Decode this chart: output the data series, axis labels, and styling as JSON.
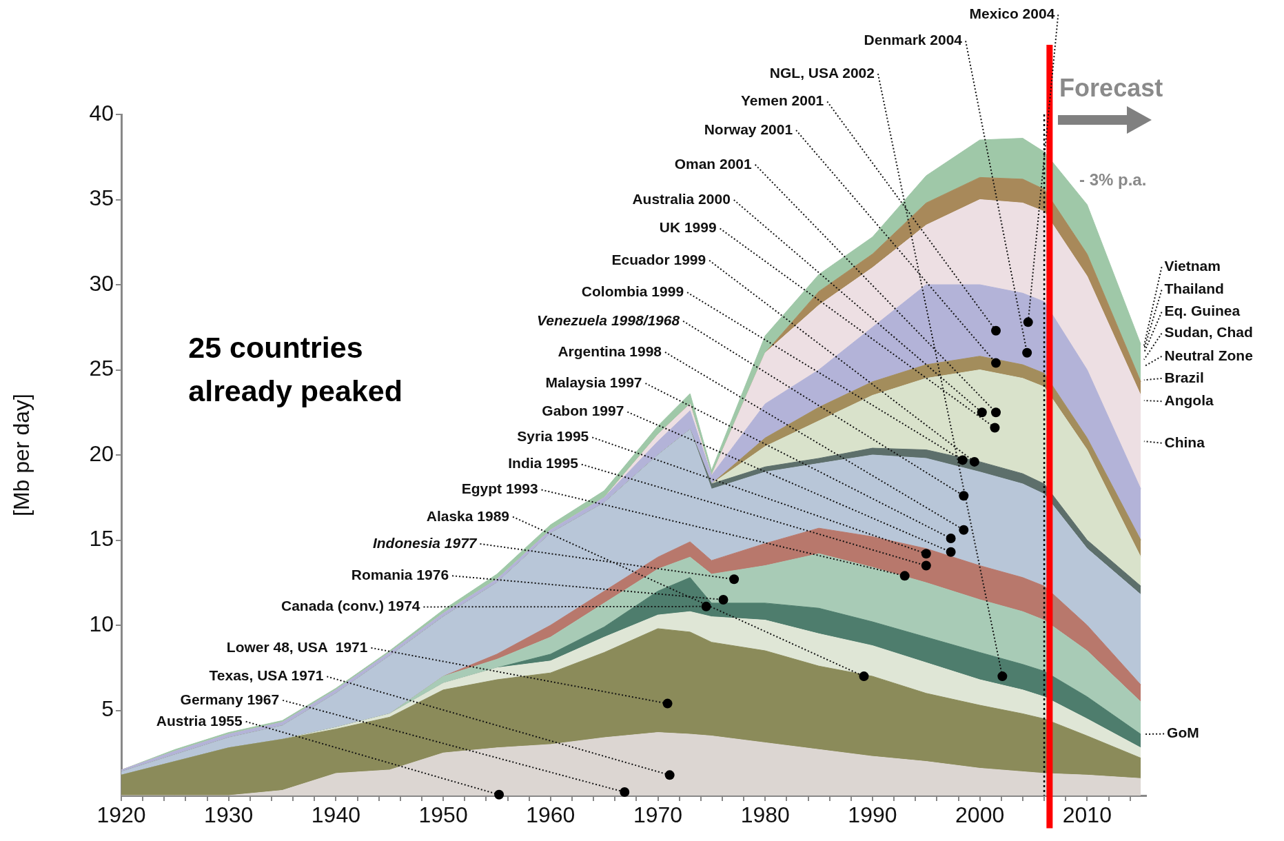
{
  "chart_data": {
    "type": "area",
    "stacked": true,
    "ylabel": "[Mb per day]",
    "x": [
      1920,
      1925,
      1930,
      1935,
      1940,
      1945,
      1950,
      1955,
      1960,
      1965,
      1970,
      1973,
      1975,
      1980,
      1985,
      1990,
      1995,
      2000,
      2004,
      2006,
      2010,
      2015
    ],
    "xlim": [
      1920,
      2015.5
    ],
    "ylim": [
      0,
      40
    ],
    "xticks": [
      1920,
      {
        "value": 1922,
        "label": null
      },
      {
        "value": 1924,
        "label": null
      },
      {
        "value": 1926,
        "label": null
      },
      {
        "value": 1928,
        "label": null
      },
      1930,
      {
        "value": 1932,
        "label": null
      },
      {
        "value": 1934,
        "label": null
      },
      {
        "value": 1936,
        "label": null
      },
      {
        "value": 1938,
        "label": null
      },
      1940,
      {
        "value": 1942,
        "label": null
      },
      {
        "value": 1944,
        "label": null
      },
      {
        "value": 1946,
        "label": null
      },
      {
        "value": 1948,
        "label": null
      },
      1950,
      {
        "value": 1952,
        "label": null
      },
      {
        "value": 1954,
        "label": null
      },
      {
        "value": 1956,
        "label": null
      },
      {
        "value": 1958,
        "label": null
      },
      1960,
      {
        "value": 1962,
        "label": null
      },
      {
        "value": 1964,
        "label": null
      },
      {
        "value": 1966,
        "label": null
      },
      {
        "value": 1968,
        "label": null
      },
      1970,
      {
        "value": 1972,
        "label": null
      },
      {
        "value": 1974,
        "label": null
      },
      {
        "value": 1976,
        "label": null
      },
      {
        "value": 1978,
        "label": null
      },
      1980,
      {
        "value": 1982,
        "label": null
      },
      {
        "value": 1984,
        "label": null
      },
      {
        "value": 1986,
        "label": null
      },
      {
        "value": 1988,
        "label": null
      },
      1990,
      {
        "value": 1992,
        "label": null
      },
      {
        "value": 1994,
        "label": null
      },
      {
        "value": 1996,
        "label": null
      },
      {
        "value": 1998,
        "label": null
      },
      2000,
      {
        "value": 2002,
        "label": null
      },
      {
        "value": 2004,
        "label": null
      },
      {
        "value": 2006,
        "label": null
      },
      {
        "value": 2008,
        "label": null
      },
      2010,
      {
        "value": 2012,
        "label": null
      },
      {
        "value": 2014,
        "label": null
      }
    ],
    "yticks": [
      5,
      10,
      15,
      20,
      25,
      30,
      35,
      40
    ],
    "series": [
      {
        "color": "#dcd6d2",
        "values": [
          0,
          0,
          0,
          0.3,
          1.3,
          1.5,
          2.5,
          2.8,
          3.0,
          3.4,
          3.7,
          3.6,
          3.5,
          3.1,
          2.7,
          2.3,
          2.0,
          1.6,
          1.4,
          1.3,
          1.2,
          1.0
        ]
      },
      {
        "color": "#8b8b5a",
        "values": [
          1.2,
          2.0,
          2.8,
          3.0,
          2.6,
          3.1,
          3.7,
          4.0,
          4.2,
          5.0,
          6.1,
          6.0,
          5.5,
          5.4,
          4.9,
          4.7,
          4.0,
          3.7,
          3.4,
          3.2,
          2.3,
          1.2
        ]
      },
      {
        "color": "#dfe6d6",
        "values": [
          0,
          0,
          0,
          0,
          0.1,
          0.2,
          0.4,
          0.7,
          0.7,
          0.9,
          0.8,
          1.2,
          1.5,
          1.8,
          1.9,
          1.8,
          1.8,
          1.5,
          1.4,
          1.3,
          1.0,
          0.6
        ]
      },
      {
        "color": "#4e7d6d",
        "values": [
          0,
          0,
          0,
          0,
          0,
          0,
          0,
          0,
          0.4,
          0.6,
          1.4,
          2.0,
          0.8,
          1.0,
          1.5,
          1.4,
          1.5,
          1.6,
          1.5,
          1.5,
          1.3,
          0.8
        ]
      },
      {
        "color": "#a8cbb6",
        "values": [
          0,
          0,
          0,
          0,
          0,
          0,
          0.4,
          0.5,
          1.0,
          1.4,
          1.3,
          1.2,
          1.7,
          2.2,
          3.2,
          3.2,
          3.2,
          3.1,
          3.1,
          3.0,
          2.7,
          1.9
        ]
      },
      {
        "color": "#b8786c",
        "values": [
          0,
          0,
          0,
          0,
          0,
          0,
          0,
          0.3,
          0.7,
          0.7,
          0.7,
          0.9,
          0.8,
          1.3,
          1.5,
          1.8,
          2.0,
          2.0,
          2.0,
          2.0,
          1.5,
          1.0
        ]
      },
      {
        "color": "#b8c6d8",
        "values": [
          0.2,
          0.4,
          0.6,
          0.8,
          2.0,
          3.4,
          3.5,
          4.2,
          5.4,
          5.2,
          6.0,
          6.6,
          4.2,
          4.2,
          3.8,
          4.8,
          5.3,
          5.5,
          5.5,
          5.4,
          4.5,
          5.3
        ]
      },
      {
        "color": "#5d6f6b",
        "values": [
          0,
          0,
          0,
          0,
          0,
          0,
          0,
          0,
          0,
          0,
          0,
          0,
          0.3,
          0.3,
          0.3,
          0.4,
          0.5,
          0.6,
          0.6,
          0.6,
          0.5,
          0.5
        ]
      },
      {
        "color": "#d9e2cb",
        "values": [
          0,
          0,
          0,
          0,
          0,
          0,
          0,
          0,
          0,
          0,
          0,
          0,
          0,
          1.2,
          2.2,
          3.1,
          4.2,
          5.4,
          5.6,
          5.7,
          5.3,
          1.7
        ]
      },
      {
        "color": "#a38d5c",
        "values": [
          0,
          0,
          0,
          0,
          0,
          0,
          0,
          0,
          0,
          0,
          0,
          0,
          0,
          0.5,
          0.8,
          0.8,
          0.8,
          0.8,
          0.8,
          0.8,
          0.7,
          1.0
        ]
      },
      {
        "color": "#b3b3d8",
        "values": [
          0.1,
          0.2,
          0.2,
          0.2,
          0.2,
          0.2,
          0.2,
          0.2,
          0.2,
          0.3,
          0.8,
          1.1,
          0.5,
          2.0,
          2.2,
          3.2,
          4.7,
          4.2,
          4.2,
          4.2,
          4.0,
          3.0
        ]
      },
      {
        "color": "#eddfe3",
        "values": [
          0,
          0,
          0,
          0,
          0,
          0,
          0,
          0,
          0,
          0,
          0.4,
          0.4,
          0,
          3.0,
          3.8,
          3.5,
          3.5,
          5.0,
          5.3,
          5.3,
          5.5,
          5.5
        ]
      },
      {
        "color": "#a8895a",
        "values": [
          0,
          0,
          0,
          0,
          0,
          0,
          0,
          0,
          0,
          0,
          0,
          0,
          0,
          0,
          0.8,
          0.8,
          1.3,
          1.3,
          1.4,
          1.3,
          1.3,
          0.8
        ]
      },
      {
        "color": "#9fc8a8",
        "values": [
          0,
          0.1,
          0.1,
          0.1,
          0.1,
          0.1,
          0.2,
          0.3,
          0.3,
          0.4,
          0.5,
          0.6,
          0.3,
          1.0,
          1.0,
          1.0,
          1.6,
          2.2,
          2.4,
          2.2,
          2.9,
          2.2
        ]
      }
    ],
    "ref_lines": [
      {
        "axis": "x",
        "value": 2006.5,
        "label": "Forecast",
        "color": "#ff0000",
        "line_style": "solid"
      },
      {
        "axis": "x",
        "value": 2006,
        "color": "#000000",
        "line_style": "dotted"
      }
    ],
    "annotations": [
      {
        "text": "Mexico 2004",
        "x": 2004.5,
        "y": 27.8
      },
      {
        "text": "Denmark 2004",
        "x": 2004.4,
        "y": 26.0
      },
      {
        "text": "NGL, USA 2002",
        "x": 2002.1,
        "y": 7.0
      },
      {
        "text": "Yemen 2001",
        "x": 2001.5,
        "y": 27.3
      },
      {
        "text": "Norway 2001",
        "x": 2001.5,
        "y": 25.4
      },
      {
        "text": "Oman 2001",
        "x": 2001.5,
        "y": 22.5
      },
      {
        "text": "Australia 2000",
        "x": 2000.2,
        "y": 22.5
      },
      {
        "text": "UK 1999",
        "x": 2001.4,
        "y": 21.6
      },
      {
        "text": "Ecuador 1999",
        "x": 1999.5,
        "y": 19.6
      },
      {
        "text": "Colombia 1999",
        "x": 1998.4,
        "y": 19.7
      },
      {
        "text": "Venezuela 1998/1968",
        "x": 1998.5,
        "y": 17.6
      },
      {
        "text": "Argentina 1998",
        "x": 1998.5,
        "y": 15.6
      },
      {
        "text": "Malaysia 1997",
        "x": 1997.3,
        "y": 15.1
      },
      {
        "text": "Gabon 1997",
        "x": 1997.3,
        "y": 14.3
      },
      {
        "text": "Syria 1995",
        "x": 1995,
        "y": 14.2
      },
      {
        "text": "India 1995",
        "x": 1995,
        "y": 13.5
      },
      {
        "text": "Egypt 1993",
        "x": 1993,
        "y": 12.9
      },
      {
        "text": "Alaska 1989",
        "x": 1989.2,
        "y": 7.0
      },
      {
        "text": "Indonesia 1977",
        "x": 1977.1,
        "y": 12.7
      },
      {
        "text": "Romania 1976",
        "x": 1976.1,
        "y": 11.5
      },
      {
        "text": "Canada (conv.) 1974",
        "x": 1974.5,
        "y": 11.1
      },
      {
        "text": "Lower 48, USA  1971",
        "x": 1970.9,
        "y": 5.4
      },
      {
        "text": "Texas, USA 1971",
        "x": 1971.1,
        "y": 1.2
      },
      {
        "text": "Germany 1967",
        "x": 1966.9,
        "y": 0.2
      },
      {
        "text": "Austria 1955",
        "x": 1955.2,
        "y": 0.05
      },
      {
        "text": "Vietnam",
        "x": 2015.3,
        "y": 26.4
      },
      {
        "text": "Thailand",
        "x": 2015.3,
        "y": 26.2
      },
      {
        "text": "Eq. Guinea",
        "x": 2015.3,
        "y": 26.0
      },
      {
        "text": "Sudan, Chad",
        "x": 2015.3,
        "y": 25.6
      },
      {
        "text": "Neutral Zone",
        "x": 2015.3,
        "y": 25.2
      },
      {
        "text": "Brazil",
        "x": 2015.3,
        "y": 24.4
      },
      {
        "text": "Angola",
        "x": 2015.3,
        "y": 23.2
      },
      {
        "text": "China",
        "x": 2015.3,
        "y": 20.8
      },
      {
        "text": "GoM",
        "x": 2015.3,
        "y": 3.6
      },
      "25 countries already peaked",
      "- 3% p.a."
    ]
  }
}
